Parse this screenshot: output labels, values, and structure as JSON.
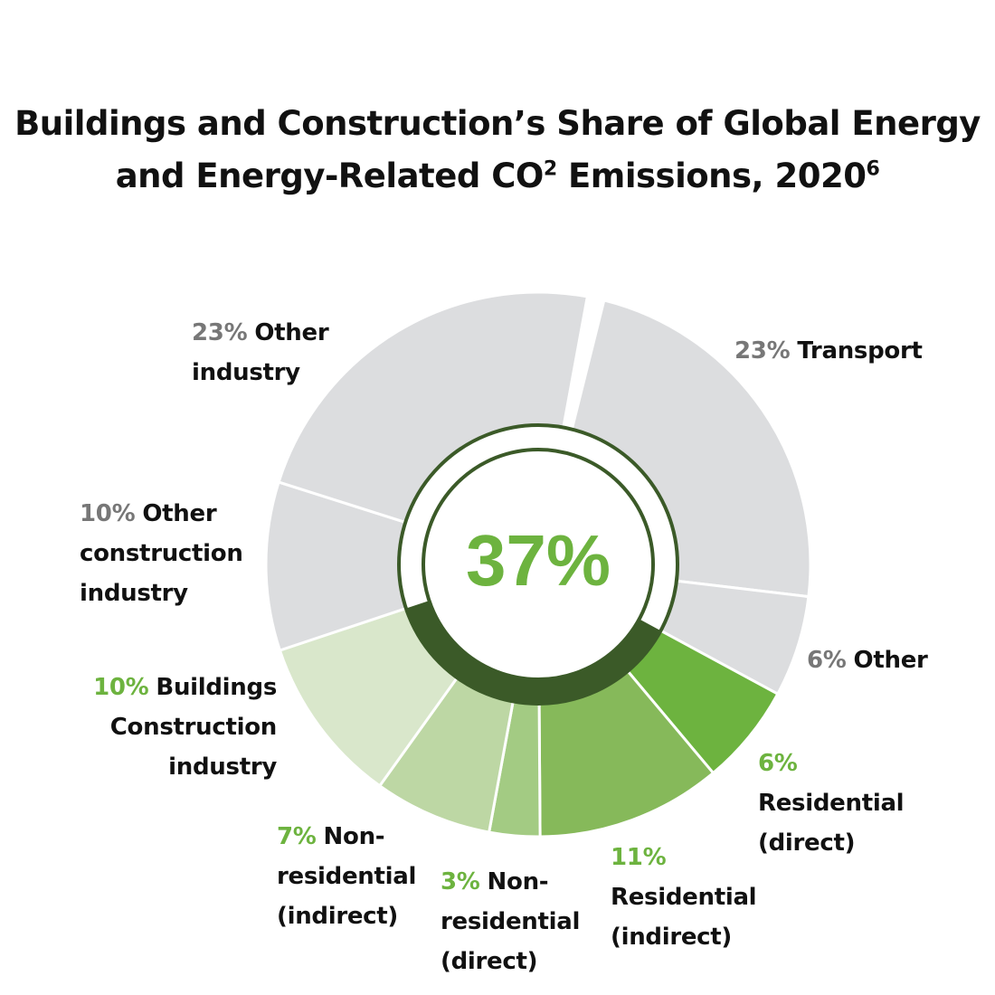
{
  "chart_data": {
    "type": "pie",
    "title": "Buildings and Construction’s Share of Global Energy and Energy-Related CO",
    "title_superscript": "2",
    "title_suffix": " Emissions, 2020",
    "title_footnote": "6",
    "center_label": "37%",
    "center_color": "#6db33f",
    "ring_color": "#3b5a28",
    "slices": [
      {
        "pct_label": "23%",
        "name": "Transport",
        "value": 23,
        "color": "#dcdddf",
        "label_color": "#777777",
        "group": "other"
      },
      {
        "pct_label": "6%",
        "name": "Other",
        "value": 6,
        "color": "#dcdddf",
        "label_color": "#777777",
        "group": "other"
      },
      {
        "pct_label": "6%",
        "name": "Residential (direct)",
        "value": 6,
        "color": "#6db33f",
        "label_color": "#6db33f",
        "group": "buildings"
      },
      {
        "pct_label": "11%",
        "name": "Residential (indirect)",
        "value": 11,
        "color": "#86b95a",
        "label_color": "#6db33f",
        "group": "buildings"
      },
      {
        "pct_label": "3%",
        "name": "Non-residential (direct)",
        "value": 3,
        "color": "#a3cb83",
        "label_color": "#6db33f",
        "group": "buildings"
      },
      {
        "pct_label": "7%",
        "name": "Non-residential (indirect)",
        "value": 7,
        "color": "#bdd7a4",
        "label_color": "#6db33f",
        "group": "buildings"
      },
      {
        "pct_label": "10%",
        "name": "Buildings Construction industry",
        "value": 10,
        "color": "#d9e7cb",
        "label_color": "#6db33f",
        "group": "buildings"
      },
      {
        "pct_label": "10%",
        "name": "Other construction industry",
        "value": 10,
        "color": "#dcdddf",
        "label_color": "#777777",
        "group": "other"
      },
      {
        "pct_label": "23%",
        "name": "Other industry",
        "value": 23,
        "color": "#dcdddf",
        "label_color": "#777777",
        "group": "other"
      }
    ],
    "label_lines": [
      [
        "Transport"
      ],
      [
        "Other"
      ],
      [
        "",
        "Residential",
        "(direct)"
      ],
      [
        "",
        "Residential",
        "(indirect)"
      ],
      [
        "Non-",
        "residential",
        "(direct)"
      ],
      [
        "Non-",
        "residential",
        "(indirect)"
      ],
      [
        "Buildings",
        "Construction",
        "industry"
      ],
      [
        "Other",
        "construction",
        "industry"
      ],
      [
        "Other",
        "industry"
      ]
    ]
  }
}
